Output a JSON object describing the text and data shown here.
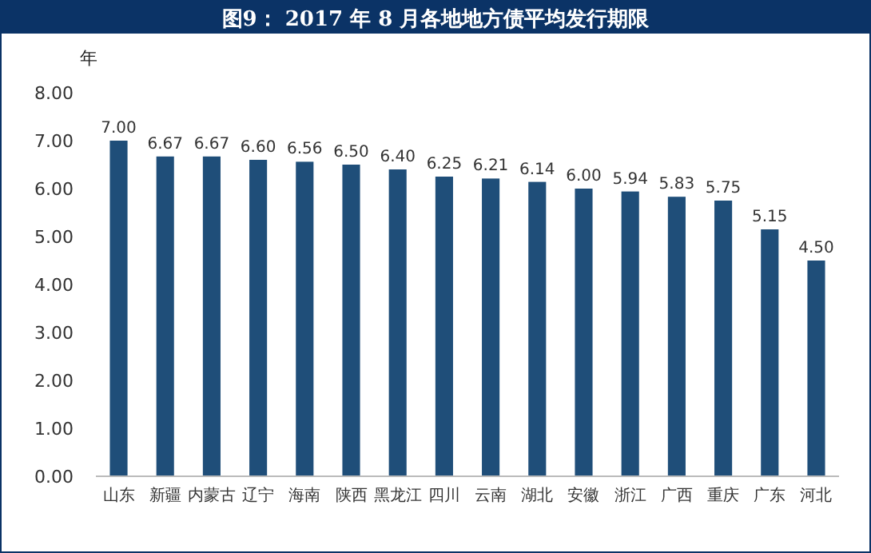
{
  "chart_data": {
    "type": "bar",
    "title": "图9： 2017 年 8 月各地地方债平均发行期限",
    "ylabel": "年",
    "categories": [
      "山东",
      "新疆",
      "内蒙古",
      "辽宁",
      "海南",
      "陕西",
      "黑龙江",
      "四川",
      "云南",
      "湖北",
      "安徽",
      "浙江",
      "广西",
      "重庆",
      "广东",
      "河北"
    ],
    "values": [
      7.0,
      6.67,
      6.67,
      6.6,
      6.56,
      6.5,
      6.4,
      6.25,
      6.21,
      6.14,
      6.0,
      5.94,
      5.83,
      5.75,
      5.15,
      4.5
    ],
    "value_labels": [
      "7.00",
      "6.67",
      "6.67",
      "6.60",
      "6.56",
      "6.50",
      "6.40",
      "6.25",
      "6.21",
      "6.14",
      "6.00",
      "5.94",
      "5.83",
      "5.75",
      "5.15",
      "4.50"
    ],
    "color": "#1f4e79",
    "ylim": [
      0,
      8
    ],
    "yticks": [
      {
        "value": 0,
        "label": "0.00"
      },
      {
        "value": 1,
        "label": "1.00"
      },
      {
        "value": 2,
        "label": "2.00"
      },
      {
        "value": 3,
        "label": "3.00"
      },
      {
        "value": 4,
        "label": "4.00"
      },
      {
        "value": 5,
        "label": "5.00"
      },
      {
        "value": 6,
        "label": "6.00"
      },
      {
        "value": 7,
        "label": "7.00"
      },
      {
        "value": 8,
        "label": "8.00"
      }
    ],
    "grid": false
  }
}
